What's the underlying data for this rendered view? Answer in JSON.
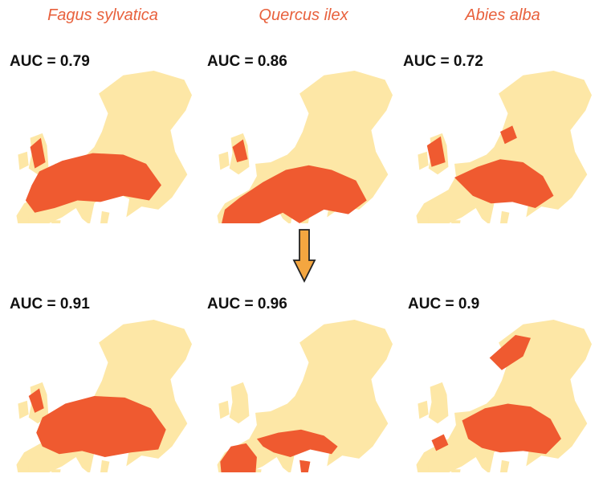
{
  "species": [
    {
      "name": "Fagus sylvatica"
    },
    {
      "name": "Quercus ilex"
    },
    {
      "name": "Abies alba"
    }
  ],
  "rows": [
    {
      "auc": [
        "AUC = 0.79",
        "AUC = 0.86",
        "AUC = 0.72"
      ]
    },
    {
      "auc": [
        "AUC = 0.91",
        "AUC = 0.96",
        "AUC = 0.9"
      ]
    }
  ],
  "colors": {
    "land": "#fde7a6",
    "presence": "#ef5a30",
    "title": "#e8613d",
    "arrow_fill": "#f4a640",
    "arrow_stroke": "#222222"
  },
  "icons": {
    "arrow": "down-arrow-icon"
  }
}
